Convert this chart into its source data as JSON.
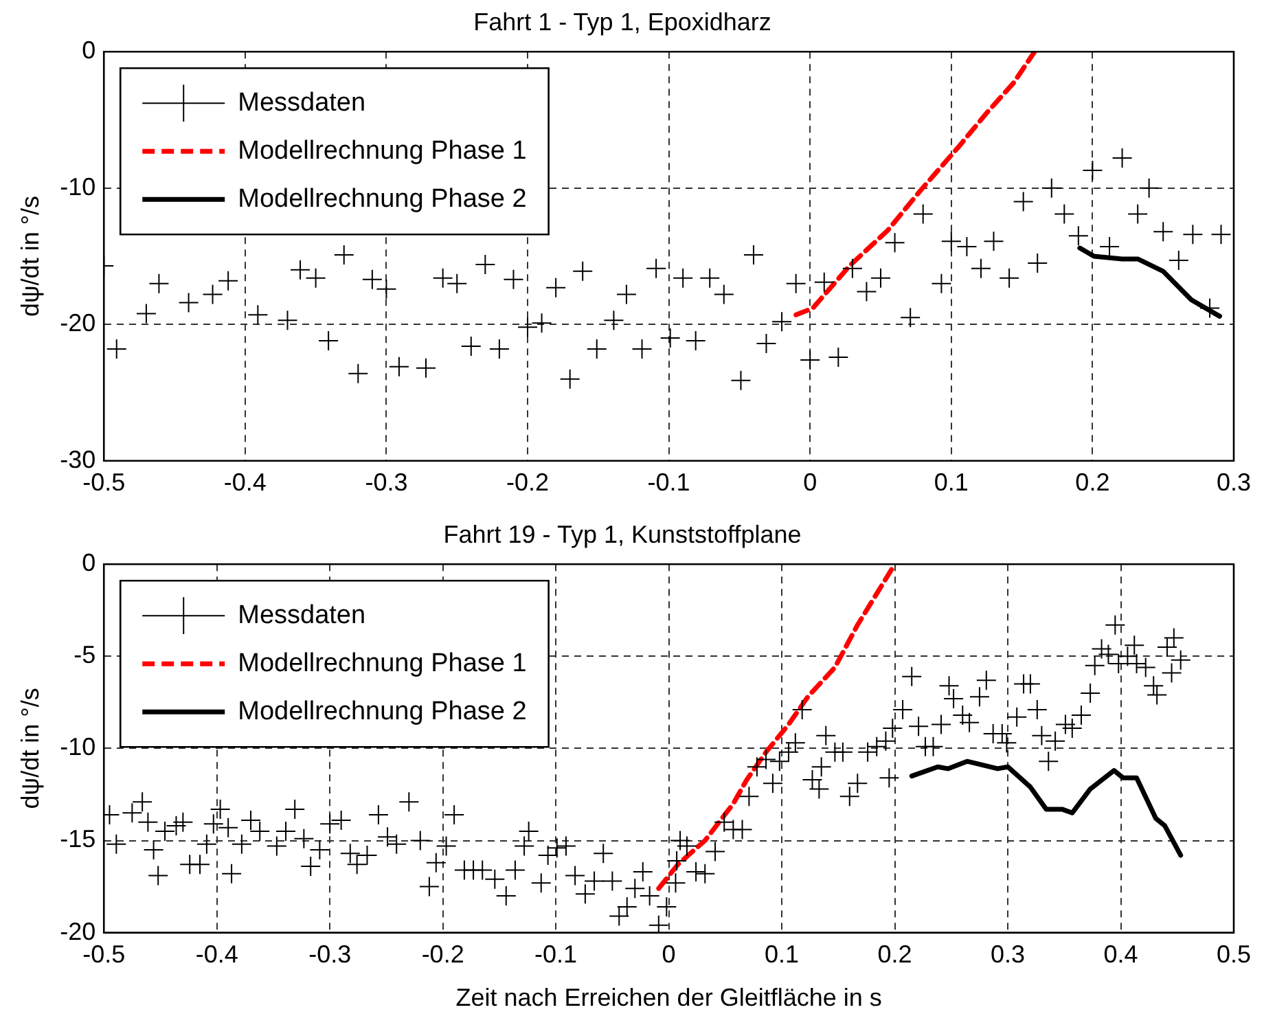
{
  "chart_data": [
    {
      "type": "scatter",
      "title": "Fahrt 1 - Typ 1, Epoxidharz",
      "ylabel": "dψ/dt in °/s",
      "xlim": [
        -0.5,
        0.3
      ],
      "ylim": [
        -30,
        0
      ],
      "xticks": [
        -0.5,
        -0.4,
        -0.3,
        -0.2,
        -0.1,
        0,
        0.1,
        0.2,
        0.3
      ],
      "yticks": [
        -30,
        -20,
        -10,
        0
      ],
      "grid": true,
      "legend": "top left",
      "series": [
        {
          "name": "Messdaten",
          "type": "scatter",
          "marker": "cross",
          "color": "#000000",
          "x": [
            -0.5,
            -0.491,
            -0.47,
            -0.461,
            -0.44,
            -0.423,
            -0.412,
            -0.391,
            -0.37,
            -0.361,
            -0.35,
            -0.341,
            -0.33,
            -0.32,
            -0.31,
            -0.3,
            -0.291,
            -0.272,
            -0.26,
            -0.25,
            -0.24,
            -0.23,
            -0.22,
            -0.21,
            -0.2,
            -0.19,
            -0.18,
            -0.17,
            -0.161,
            -0.151,
            -0.139,
            -0.13,
            -0.119,
            -0.109,
            -0.099,
            -0.09,
            -0.081,
            -0.071,
            -0.061,
            -0.049,
            -0.04,
            -0.031,
            -0.02,
            -0.01,
            0,
            0.01,
            0.02,
            0.03,
            0.04,
            0.05,
            0.06,
            0.071,
            0.08,
            0.093,
            0.1,
            0.111,
            0.121,
            0.13,
            0.141,
            0.151,
            0.161,
            0.171,
            0.18,
            0.19,
            0.2,
            0.212,
            0.221,
            0.232,
            0.24,
            0.25,
            0.261,
            0.271,
            0.283,
            0.291
          ],
          "values": [
            -15.7,
            -21.8,
            -19.2,
            -17,
            -18.4,
            -17.8,
            -16.8,
            -19.3,
            -19.7,
            -16,
            -16.6,
            -21.2,
            -14.9,
            -23.6,
            -16.7,
            -17.4,
            -23.1,
            -23.2,
            -16.6,
            -17,
            -21.6,
            -15.6,
            -21.8,
            -16.7,
            -20.2,
            -19.9,
            -17.3,
            -24,
            -16.1,
            -21.8,
            -19.7,
            -17.8,
            -21.8,
            -15.9,
            -21,
            -16.6,
            -21.2,
            -16.6,
            -17.8,
            -24.1,
            -14.9,
            -21.4,
            -19.8,
            -17,
            -22.6,
            -16.9,
            -22.4,
            -15.9,
            -17.6,
            -16.6,
            -14,
            -19.5,
            -11.9,
            -17,
            -13.9,
            -14.3,
            -15.9,
            -13.9,
            -16.6,
            -11,
            -15.5,
            -10,
            -11.9,
            -13.5,
            -8.7,
            -14.3,
            -7.8,
            -11.9,
            -10,
            -13.2,
            -15.3,
            -13.4,
            -18.8,
            -13.4
          ]
        },
        {
          "name": "Modellrechnung Phase 1",
          "type": "line",
          "marker": "none",
          "line_style": "dashed",
          "color": "#ff0000",
          "x": [
            -0.01,
            0.002,
            0.028,
            0.055,
            0.078,
            0.105,
            0.125,
            0.144,
            0.159
          ],
          "values": [
            -19.3,
            -18.8,
            -15.7,
            -13.1,
            -10.2,
            -7,
            -4.5,
            -2.3,
            0
          ]
        },
        {
          "name": "Modellrechnung Phase 2",
          "type": "line",
          "marker": "none",
          "line_style": "solid",
          "color": "#000000",
          "x": [
            0.191,
            0.201,
            0.221,
            0.232,
            0.25,
            0.27,
            0.29
          ],
          "values": [
            -14.4,
            -15,
            -15.2,
            -15.2,
            -16.1,
            -18.2,
            -19.4
          ]
        }
      ]
    },
    {
      "type": "scatter",
      "title": "Fahrt 19 - Typ 1, Kunststoffplane",
      "xlabel": "Zeit nach Erreichen der Gleitfläche in s",
      "ylabel": "dψ/dt in °/s",
      "xlim": [
        -0.5,
        0.5
      ],
      "ylim": [
        -20,
        0
      ],
      "xticks": [
        -0.5,
        -0.4,
        -0.3,
        -0.2,
        -0.1,
        0,
        0.1,
        0.2,
        0.3,
        0.4,
        0.5
      ],
      "yticks": [
        -20,
        -15,
        -10,
        -5,
        0
      ],
      "grid": true,
      "legend": "top left",
      "series": [
        {
          "name": "Messdaten",
          "type": "scatter",
          "marker": "cross",
          "color": "#000000",
          "x": [
            -0.495,
            -0.489,
            -0.475,
            -0.466,
            -0.461,
            -0.456,
            -0.452,
            -0.446,
            -0.436,
            -0.43,
            -0.424,
            -0.415,
            -0.409,
            -0.403,
            -0.397,
            -0.39,
            -0.387,
            -0.378,
            -0.37,
            -0.362,
            -0.347,
            -0.339,
            -0.331,
            -0.323,
            -0.317,
            -0.309,
            -0.3,
            -0.29,
            -0.282,
            -0.276,
            -0.267,
            -0.257,
            -0.249,
            -0.241,
            -0.23,
            -0.22,
            -0.212,
            -0.206,
            -0.197,
            -0.19,
            -0.181,
            -0.173,
            -0.165,
            -0.154,
            -0.144,
            -0.136,
            -0.128,
            -0.124,
            -0.113,
            -0.107,
            -0.099,
            -0.091,
            -0.083,
            -0.074,
            -0.066,
            -0.058,
            -0.05,
            -0.044,
            -0.037,
            -0.03,
            -0.023,
            -0.017,
            -0.009,
            -0.002,
            0.006,
            0.01,
            0.007,
            0.016,
            0.024,
            0.032,
            0.041,
            0.049,
            0.057,
            0.065,
            0.071,
            0.078,
            0.086,
            0.092,
            0.098,
            0.106,
            0.112,
            0.118,
            0.127,
            0.133,
            0.135,
            0.139,
            0.147,
            0.154,
            0.16,
            0.167,
            0.176,
            0.184,
            0.192,
            0.195,
            0.198,
            0.207,
            0.215,
            0.221,
            0.227,
            0.234,
            0.241,
            0.248,
            0.252,
            0.26,
            0.266,
            0.275,
            0.281,
            0.287,
            0.295,
            0.299,
            0.308,
            0.314,
            0.32,
            0.326,
            0.33,
            0.336,
            0.342,
            0.351,
            0.357,
            0.365,
            0.373,
            0.377,
            0.383,
            0.389,
            0.395,
            0.398,
            0.406,
            0.412,
            0.414,
            0.422,
            0.429,
            0.432,
            0.441,
            0.447,
            0.445,
            0.453
          ],
          "values": [
            -13.6,
            -15.2,
            -13.5,
            -12.9,
            -14,
            -15.5,
            -16.9,
            -14.5,
            -14.2,
            -14,
            -16.3,
            -16.3,
            -15.2,
            -14.1,
            -13.3,
            -14.3,
            -16.8,
            -15.2,
            -13.9,
            -14.5,
            -15.3,
            -14.5,
            -13.3,
            -14.9,
            -16.4,
            -15.5,
            -14.1,
            -13.9,
            -15.7,
            -16.3,
            -15.8,
            -13.6,
            -14.8,
            -15.2,
            -12.9,
            -15,
            -17.5,
            -16.2,
            -15.3,
            -13.6,
            -16.6,
            -16.6,
            -16.6,
            -17.1,
            -18,
            -16.6,
            -15.3,
            -14.5,
            -17.3,
            -15.8,
            -15.4,
            -15.3,
            -16.9,
            -17.9,
            -17.2,
            -15.7,
            -17.2,
            -19.1,
            -18.6,
            -17.6,
            -16.7,
            -18,
            -19.6,
            -18.6,
            -17.3,
            -15,
            -16.1,
            -15.3,
            -16.7,
            -16.8,
            -15.6,
            -14,
            -14.4,
            -14.4,
            -12.6,
            -11,
            -10.6,
            -11.9,
            -10.7,
            -10.2,
            -9.7,
            -7.9,
            -11.7,
            -12.2,
            -11,
            -9.3,
            -10.2,
            -10.2,
            -12.6,
            -11.9,
            -10.2,
            -9.9,
            -9.6,
            -11.6,
            -8.9,
            -7.9,
            -6.1,
            -8.8,
            -9.9,
            -9.9,
            -8.7,
            -6.6,
            -7.3,
            -8.2,
            -8.6,
            -7.2,
            -6.3,
            -9.2,
            -9.2,
            -9.7,
            -8.3,
            -6.5,
            -6.5,
            -7.9,
            -9.3,
            -10.7,
            -9.6,
            -8.7,
            -8.9,
            -8.2,
            -7,
            -5.5,
            -4.6,
            -4.9,
            -3.3,
            -5.4,
            -5,
            -4.4,
            -5.4,
            -5.6,
            -6.6,
            -7.1,
            -4.5,
            -4,
            -5.9,
            -5.2
          ]
        },
        {
          "name": "Modellrechnung Phase 1",
          "type": "line",
          "marker": "none",
          "line_style": "dashed",
          "color": "#ff0000",
          "x": [
            -0.009,
            0.008,
            0.032,
            0.057,
            0.069,
            0.086,
            0.106,
            0.123,
            0.147,
            0.167,
            0.184,
            0.2
          ],
          "values": [
            -17.6,
            -16.3,
            -15,
            -13,
            -11.7,
            -10.2,
            -8.7,
            -7.2,
            -5.6,
            -3.3,
            -1.6,
            0
          ]
        },
        {
          "name": "Modellrechnung Phase 2",
          "type": "line",
          "marker": "none",
          "line_style": "solid",
          "color": "#000000",
          "x": [
            0.215,
            0.238,
            0.247,
            0.264,
            0.291,
            0.3,
            0.32,
            0.334,
            0.348,
            0.357,
            0.373,
            0.394,
            0.402,
            0.414,
            0.431,
            0.439,
            0.453
          ],
          "values": [
            -11.5,
            -11,
            -11.1,
            -10.7,
            -11.1,
            -11,
            -12.1,
            -13.3,
            -13.3,
            -13.5,
            -12.2,
            -11.2,
            -11.6,
            -11.6,
            -13.8,
            -14.2,
            -15.8
          ]
        }
      ]
    }
  ]
}
